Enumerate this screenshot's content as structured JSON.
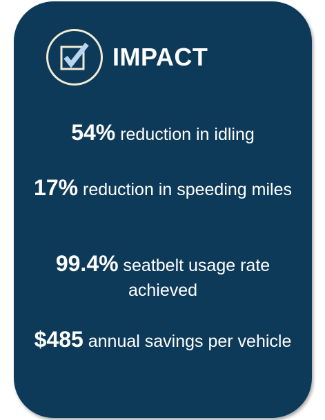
{
  "card": {
    "title": "IMPACT",
    "icon": "checkbox-check-icon",
    "background_color": "#0e3a59",
    "accent_color": "#f2ecd4",
    "check_color": "#b7d6ee"
  },
  "stats": [
    {
      "value": "54%",
      "text": "reduction in idling"
    },
    {
      "value": "17%",
      "text": "reduction in speeding miles"
    },
    {
      "value": "99.4%",
      "text": "seatbelt usage rate achieved"
    },
    {
      "value": "$485",
      "text": "annual savings per vehicle"
    }
  ]
}
